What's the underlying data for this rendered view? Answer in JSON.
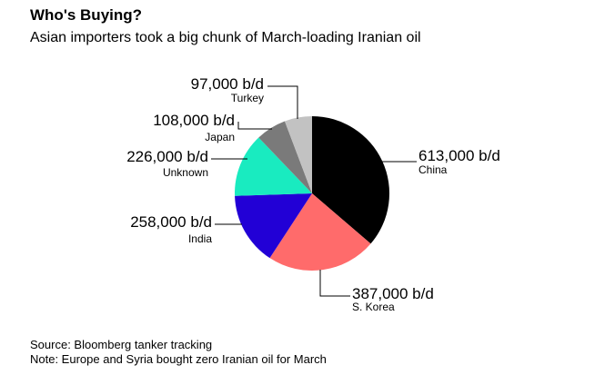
{
  "header": {
    "title": "Who's Buying?",
    "subtitle": "Asian importers took a big chunk of March-loading Iranian oil"
  },
  "footer": {
    "source": "Source: Bloomberg tanker tracking",
    "note": "Note: Europe and Syria bought zero Iranian oil for March"
  },
  "chart_data": {
    "type": "pie",
    "title": "Who's Buying?",
    "subtitle": "Asian importers took a big chunk of March-loading Iranian oil",
    "unit": "b/d",
    "slices": [
      {
        "name": "China",
        "value": 613000,
        "value_label": "613,000 b/d",
        "color": "#000000"
      },
      {
        "name": "S. Korea",
        "value": 387000,
        "value_label": "387,000 b/d",
        "color": "#ff6b6b"
      },
      {
        "name": "India",
        "value": 258000,
        "value_label": "258,000 b/d",
        "color": "#2200d6"
      },
      {
        "name": "Unknown",
        "value": 226000,
        "value_label": "226,000 b/d",
        "color": "#19ebc0"
      },
      {
        "name": "Japan",
        "value": 108000,
        "value_label": "108,000 b/d",
        "color": "#7a7a7a"
      },
      {
        "name": "Turkey",
        "value": 97000,
        "value_label": "97,000 b/d",
        "color": "#c2c2c2"
      }
    ]
  }
}
